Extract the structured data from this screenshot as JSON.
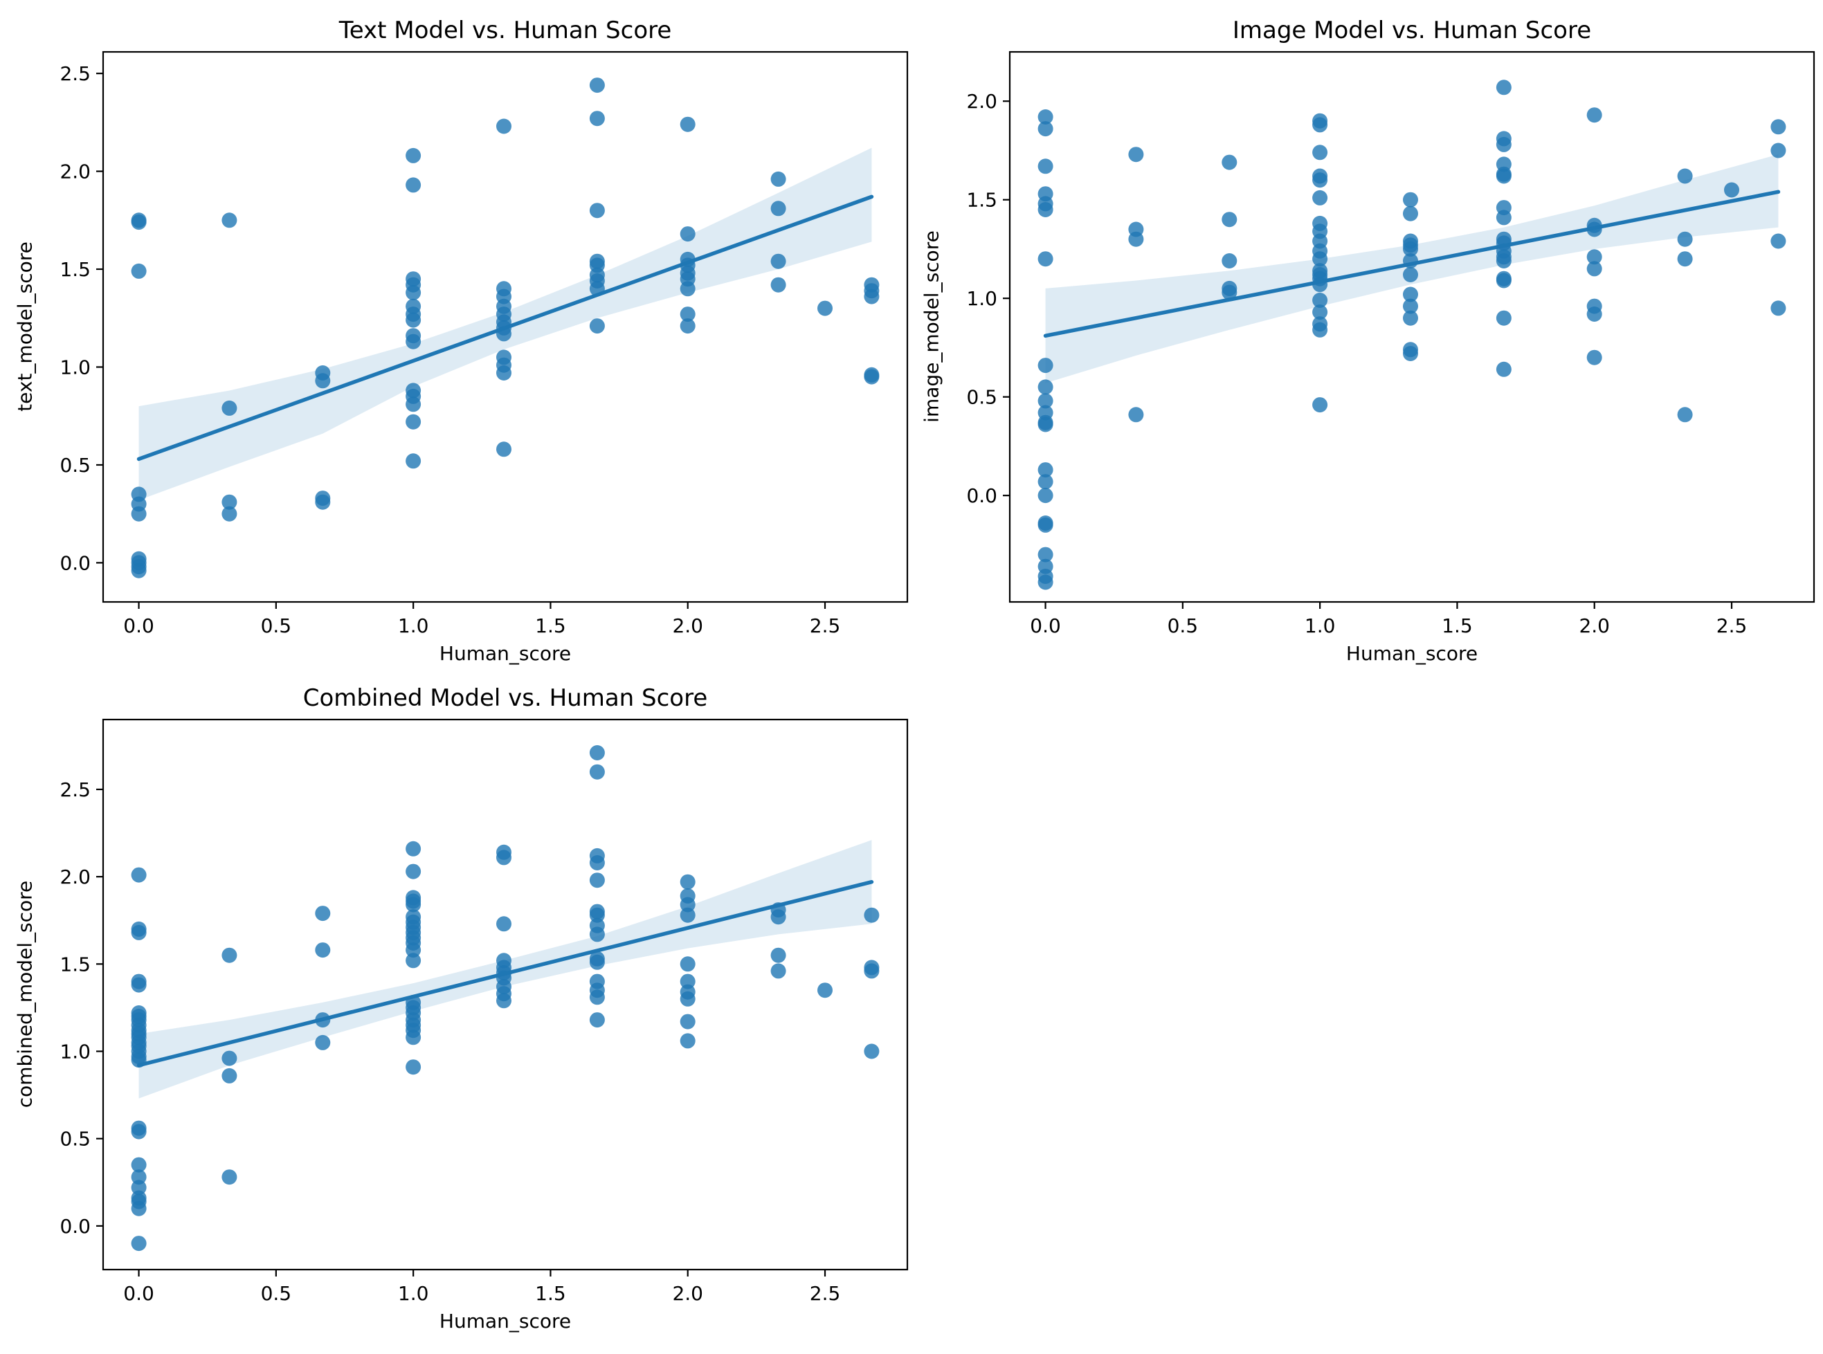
{
  "figure": {
    "background": "#ffffff"
  },
  "colors": {
    "marker": "#1f77b4",
    "marker_opacity": 0.8,
    "regression_line": "#1f77b4",
    "confidence_band": "#1f77b4",
    "band_opacity": 0.15,
    "axis": "#000000",
    "text": "#000000"
  },
  "chart_data": [
    {
      "id": "text_model",
      "type": "scatter",
      "title": "Text Model vs. Human Score",
      "xlabel": "Human_score",
      "ylabel": "text_model_score",
      "xlim": [
        -0.13,
        2.8
      ],
      "ylim": [
        -0.2,
        2.61
      ],
      "xticks": [
        0.0,
        0.5,
        1.0,
        1.5,
        2.0,
        2.5
      ],
      "yticks": [
        0.0,
        0.5,
        1.0,
        1.5,
        2.0,
        2.5
      ],
      "grid": false,
      "regression_line": {
        "x": [
          0.0,
          2.67
        ],
        "y": [
          0.53,
          1.87
        ]
      },
      "confidence_band": {
        "x": [
          0.0,
          0.33,
          0.67,
          1.0,
          1.33,
          1.67,
          2.0,
          2.33,
          2.67
        ],
        "upper": [
          0.8,
          0.88,
          0.99,
          1.12,
          1.28,
          1.47,
          1.67,
          1.89,
          2.12
        ],
        "lower": [
          0.32,
          0.49,
          0.66,
          0.9,
          1.09,
          1.25,
          1.38,
          1.5,
          1.64
        ]
      },
      "points": [
        [
          0,
          1.75
        ],
        [
          0,
          1.74
        ],
        [
          0,
          1.49
        ],
        [
          0,
          0.35
        ],
        [
          0,
          0.3
        ],
        [
          0,
          0.25
        ],
        [
          0,
          0.02
        ],
        [
          0,
          0.0
        ],
        [
          0,
          -0.02
        ],
        [
          0,
          -0.04
        ],
        [
          0.33,
          1.75
        ],
        [
          0.33,
          0.79
        ],
        [
          0.33,
          0.31
        ],
        [
          0.33,
          0.25
        ],
        [
          0.67,
          0.97
        ],
        [
          0.67,
          0.93
        ],
        [
          0.67,
          0.33
        ],
        [
          0.67,
          0.31
        ],
        [
          1,
          2.08
        ],
        [
          1,
          1.93
        ],
        [
          1,
          1.45
        ],
        [
          1,
          1.42
        ],
        [
          1,
          1.38
        ],
        [
          1,
          1.31
        ],
        [
          1,
          1.27
        ],
        [
          1,
          1.24
        ],
        [
          1,
          1.16
        ],
        [
          1,
          1.13
        ],
        [
          1,
          0.88
        ],
        [
          1,
          0.85
        ],
        [
          1,
          0.81
        ],
        [
          1,
          0.72
        ],
        [
          1,
          0.52
        ],
        [
          1.33,
          2.23
        ],
        [
          1.33,
          1.4
        ],
        [
          1.33,
          1.36
        ],
        [
          1.33,
          1.31
        ],
        [
          1.33,
          1.27
        ],
        [
          1.33,
          1.23
        ],
        [
          1.33,
          1.2
        ],
        [
          1.33,
          1.17
        ],
        [
          1.33,
          1.05
        ],
        [
          1.33,
          1.01
        ],
        [
          1.33,
          0.97
        ],
        [
          1.33,
          0.58
        ],
        [
          1.67,
          2.44
        ],
        [
          1.67,
          2.27
        ],
        [
          1.67,
          1.8
        ],
        [
          1.67,
          1.54
        ],
        [
          1.67,
          1.52
        ],
        [
          1.67,
          1.47
        ],
        [
          1.67,
          1.44
        ],
        [
          1.67,
          1.4
        ],
        [
          1.67,
          1.21
        ],
        [
          2,
          2.24
        ],
        [
          2,
          1.68
        ],
        [
          2,
          1.55
        ],
        [
          2,
          1.52
        ],
        [
          2,
          1.48
        ],
        [
          2,
          1.45
        ],
        [
          2,
          1.4
        ],
        [
          2,
          1.27
        ],
        [
          2,
          1.21
        ],
        [
          2.33,
          1.96
        ],
        [
          2.33,
          1.81
        ],
        [
          2.33,
          1.54
        ],
        [
          2.33,
          1.42
        ],
        [
          2.5,
          1.3
        ],
        [
          2.67,
          1.42
        ],
        [
          2.67,
          1.39
        ],
        [
          2.67,
          1.36
        ],
        [
          2.67,
          0.96
        ],
        [
          2.67,
          0.95
        ]
      ]
    },
    {
      "id": "image_model",
      "type": "scatter",
      "title": "Image Model vs. Human Score",
      "xlabel": "Human_score",
      "ylabel": "image_model_score",
      "xlim": [
        -0.13,
        2.8
      ],
      "ylim": [
        -0.54,
        2.25
      ],
      "xticks": [
        0.0,
        0.5,
        1.0,
        1.5,
        2.0,
        2.5
      ],
      "yticks": [
        0.0,
        0.5,
        1.0,
        1.5,
        2.0
      ],
      "grid": false,
      "regression_line": {
        "x": [
          0.0,
          2.67
        ],
        "y": [
          0.81,
          1.54
        ]
      },
      "confidence_band": {
        "x": [
          0.0,
          0.33,
          0.67,
          1.0,
          1.33,
          1.67,
          2.0,
          2.33,
          2.67
        ],
        "upper": [
          1.05,
          1.09,
          1.14,
          1.2,
          1.27,
          1.36,
          1.47,
          1.6,
          1.73
        ],
        "lower": [
          0.57,
          0.71,
          0.84,
          0.96,
          1.07,
          1.17,
          1.25,
          1.31,
          1.36
        ]
      },
      "points": [
        [
          0,
          1.92
        ],
        [
          0,
          1.86
        ],
        [
          0,
          1.67
        ],
        [
          0,
          1.53
        ],
        [
          0,
          1.48
        ],
        [
          0,
          1.45
        ],
        [
          0,
          1.2
        ],
        [
          0,
          0.66
        ],
        [
          0,
          0.55
        ],
        [
          0,
          0.48
        ],
        [
          0,
          0.42
        ],
        [
          0,
          0.37
        ],
        [
          0,
          0.36
        ],
        [
          0,
          0.13
        ],
        [
          0,
          0.07
        ],
        [
          0,
          0.0
        ],
        [
          0,
          -0.14
        ],
        [
          0,
          -0.15
        ],
        [
          0,
          -0.3
        ],
        [
          0,
          -0.36
        ],
        [
          0,
          -0.41
        ],
        [
          0,
          -0.44
        ],
        [
          0.33,
          1.73
        ],
        [
          0.33,
          1.35
        ],
        [
          0.33,
          1.3
        ],
        [
          0.33,
          0.41
        ],
        [
          0.67,
          1.69
        ],
        [
          0.67,
          1.4
        ],
        [
          0.67,
          1.19
        ],
        [
          0.67,
          1.05
        ],
        [
          0.67,
          1.03
        ],
        [
          1,
          1.9
        ],
        [
          1,
          1.88
        ],
        [
          1,
          1.74
        ],
        [
          1,
          1.62
        ],
        [
          1,
          1.6
        ],
        [
          1,
          1.51
        ],
        [
          1,
          1.38
        ],
        [
          1,
          1.34
        ],
        [
          1,
          1.29
        ],
        [
          1,
          1.24
        ],
        [
          1,
          1.2
        ],
        [
          1,
          1.14
        ],
        [
          1,
          1.12
        ],
        [
          1,
          1.1
        ],
        [
          1,
          1.07
        ],
        [
          1,
          0.99
        ],
        [
          1,
          0.93
        ],
        [
          1,
          0.87
        ],
        [
          1,
          0.84
        ],
        [
          1,
          0.46
        ],
        [
          1.33,
          1.5
        ],
        [
          1.33,
          1.43
        ],
        [
          1.33,
          1.29
        ],
        [
          1.33,
          1.27
        ],
        [
          1.33,
          1.25
        ],
        [
          1.33,
          1.19
        ],
        [
          1.33,
          1.12
        ],
        [
          1.33,
          1.02
        ],
        [
          1.33,
          0.96
        ],
        [
          1.33,
          0.9
        ],
        [
          1.33,
          0.74
        ],
        [
          1.33,
          0.72
        ],
        [
          1.67,
          2.07
        ],
        [
          1.67,
          1.81
        ],
        [
          1.67,
          1.78
        ],
        [
          1.67,
          1.68
        ],
        [
          1.67,
          1.63
        ],
        [
          1.67,
          1.62
        ],
        [
          1.67,
          1.46
        ],
        [
          1.67,
          1.41
        ],
        [
          1.67,
          1.3
        ],
        [
          1.67,
          1.28
        ],
        [
          1.67,
          1.24
        ],
        [
          1.67,
          1.21
        ],
        [
          1.67,
          1.19
        ],
        [
          1.67,
          1.1
        ],
        [
          1.67,
          1.09
        ],
        [
          1.67,
          0.9
        ],
        [
          1.67,
          0.64
        ],
        [
          2,
          1.93
        ],
        [
          2,
          1.37
        ],
        [
          2,
          1.35
        ],
        [
          2,
          1.21
        ],
        [
          2,
          1.15
        ],
        [
          2,
          0.96
        ],
        [
          2,
          0.92
        ],
        [
          2,
          0.7
        ],
        [
          2.33,
          1.62
        ],
        [
          2.33,
          1.3
        ],
        [
          2.33,
          1.2
        ],
        [
          2.33,
          0.41
        ],
        [
          2.5,
          1.55
        ],
        [
          2.67,
          1.87
        ],
        [
          2.67,
          1.75
        ],
        [
          2.67,
          1.29
        ],
        [
          2.67,
          0.95
        ]
      ]
    },
    {
      "id": "combined_model",
      "type": "scatter",
      "title": "Combined Model vs. Human Score",
      "xlabel": "Human_score",
      "ylabel": "combined_model_score",
      "xlim": [
        -0.13,
        2.8
      ],
      "ylim": [
        -0.25,
        2.9
      ],
      "xticks": [
        0.0,
        0.5,
        1.0,
        1.5,
        2.0,
        2.5
      ],
      "yticks": [
        0.0,
        0.5,
        1.0,
        1.5,
        2.0,
        2.5
      ],
      "grid": false,
      "regression_line": {
        "x": [
          0.0,
          2.67
        ],
        "y": [
          0.92,
          1.97
        ]
      },
      "confidence_band": {
        "x": [
          0.0,
          0.33,
          0.67,
          1.0,
          1.33,
          1.67,
          2.0,
          2.33,
          2.67
        ],
        "upper": [
          1.1,
          1.18,
          1.28,
          1.39,
          1.52,
          1.66,
          1.83,
          2.02,
          2.21
        ],
        "lower": [
          0.73,
          0.92,
          1.08,
          1.23,
          1.37,
          1.49,
          1.59,
          1.67,
          1.73
        ]
      },
      "points": [
        [
          0,
          2.01
        ],
        [
          0,
          1.7
        ],
        [
          0,
          1.68
        ],
        [
          0,
          1.4
        ],
        [
          0,
          1.38
        ],
        [
          0,
          1.22
        ],
        [
          0,
          1.2
        ],
        [
          0,
          1.18
        ],
        [
          0,
          1.15
        ],
        [
          0,
          1.12
        ],
        [
          0,
          1.1
        ],
        [
          0,
          1.08
        ],
        [
          0,
          1.05
        ],
        [
          0,
          1.03
        ],
        [
          0,
          1.0
        ],
        [
          0,
          0.97
        ],
        [
          0,
          0.95
        ],
        [
          0,
          0.56
        ],
        [
          0,
          0.54
        ],
        [
          0,
          0.35
        ],
        [
          0,
          0.28
        ],
        [
          0,
          0.22
        ],
        [
          0,
          0.16
        ],
        [
          0,
          0.14
        ],
        [
          0,
          0.1
        ],
        [
          0,
          -0.1
        ],
        [
          0.33,
          1.55
        ],
        [
          0.33,
          0.96
        ],
        [
          0.33,
          0.86
        ],
        [
          0.33,
          0.28
        ],
        [
          0.67,
          1.79
        ],
        [
          0.67,
          1.58
        ],
        [
          0.67,
          1.18
        ],
        [
          0.67,
          1.05
        ],
        [
          1,
          2.16
        ],
        [
          1,
          2.03
        ],
        [
          1,
          1.88
        ],
        [
          1,
          1.86
        ],
        [
          1,
          1.84
        ],
        [
          1,
          1.77
        ],
        [
          1,
          1.74
        ],
        [
          1,
          1.71
        ],
        [
          1,
          1.68
        ],
        [
          1,
          1.65
        ],
        [
          1,
          1.62
        ],
        [
          1,
          1.58
        ],
        [
          1,
          1.52
        ],
        [
          1,
          1.28
        ],
        [
          1,
          1.25
        ],
        [
          1,
          1.22
        ],
        [
          1,
          1.18
        ],
        [
          1,
          1.15
        ],
        [
          1,
          1.12
        ],
        [
          1,
          1.08
        ],
        [
          1,
          0.91
        ],
        [
          1.33,
          2.14
        ],
        [
          1.33,
          2.11
        ],
        [
          1.33,
          1.73
        ],
        [
          1.33,
          1.52
        ],
        [
          1.33,
          1.48
        ],
        [
          1.33,
          1.45
        ],
        [
          1.33,
          1.42
        ],
        [
          1.33,
          1.37
        ],
        [
          1.33,
          1.33
        ],
        [
          1.33,
          1.29
        ],
        [
          1.67,
          2.71
        ],
        [
          1.67,
          2.6
        ],
        [
          1.67,
          2.12
        ],
        [
          1.67,
          2.08
        ],
        [
          1.67,
          1.98
        ],
        [
          1.67,
          1.8
        ],
        [
          1.67,
          1.78
        ],
        [
          1.67,
          1.72
        ],
        [
          1.67,
          1.67
        ],
        [
          1.67,
          1.53
        ],
        [
          1.67,
          1.51
        ],
        [
          1.67,
          1.4
        ],
        [
          1.67,
          1.35
        ],
        [
          1.67,
          1.31
        ],
        [
          1.67,
          1.18
        ],
        [
          2,
          1.97
        ],
        [
          2,
          1.89
        ],
        [
          2,
          1.84
        ],
        [
          2,
          1.78
        ],
        [
          2,
          1.5
        ],
        [
          2,
          1.4
        ],
        [
          2,
          1.34
        ],
        [
          2,
          1.3
        ],
        [
          2,
          1.17
        ],
        [
          2,
          1.06
        ],
        [
          2.33,
          1.81
        ],
        [
          2.33,
          1.77
        ],
        [
          2.33,
          1.55
        ],
        [
          2.33,
          1.46
        ],
        [
          2.5,
          1.35
        ],
        [
          2.67,
          1.78
        ],
        [
          2.67,
          1.48
        ],
        [
          2.67,
          1.46
        ],
        [
          2.67,
          1.0
        ]
      ]
    }
  ]
}
